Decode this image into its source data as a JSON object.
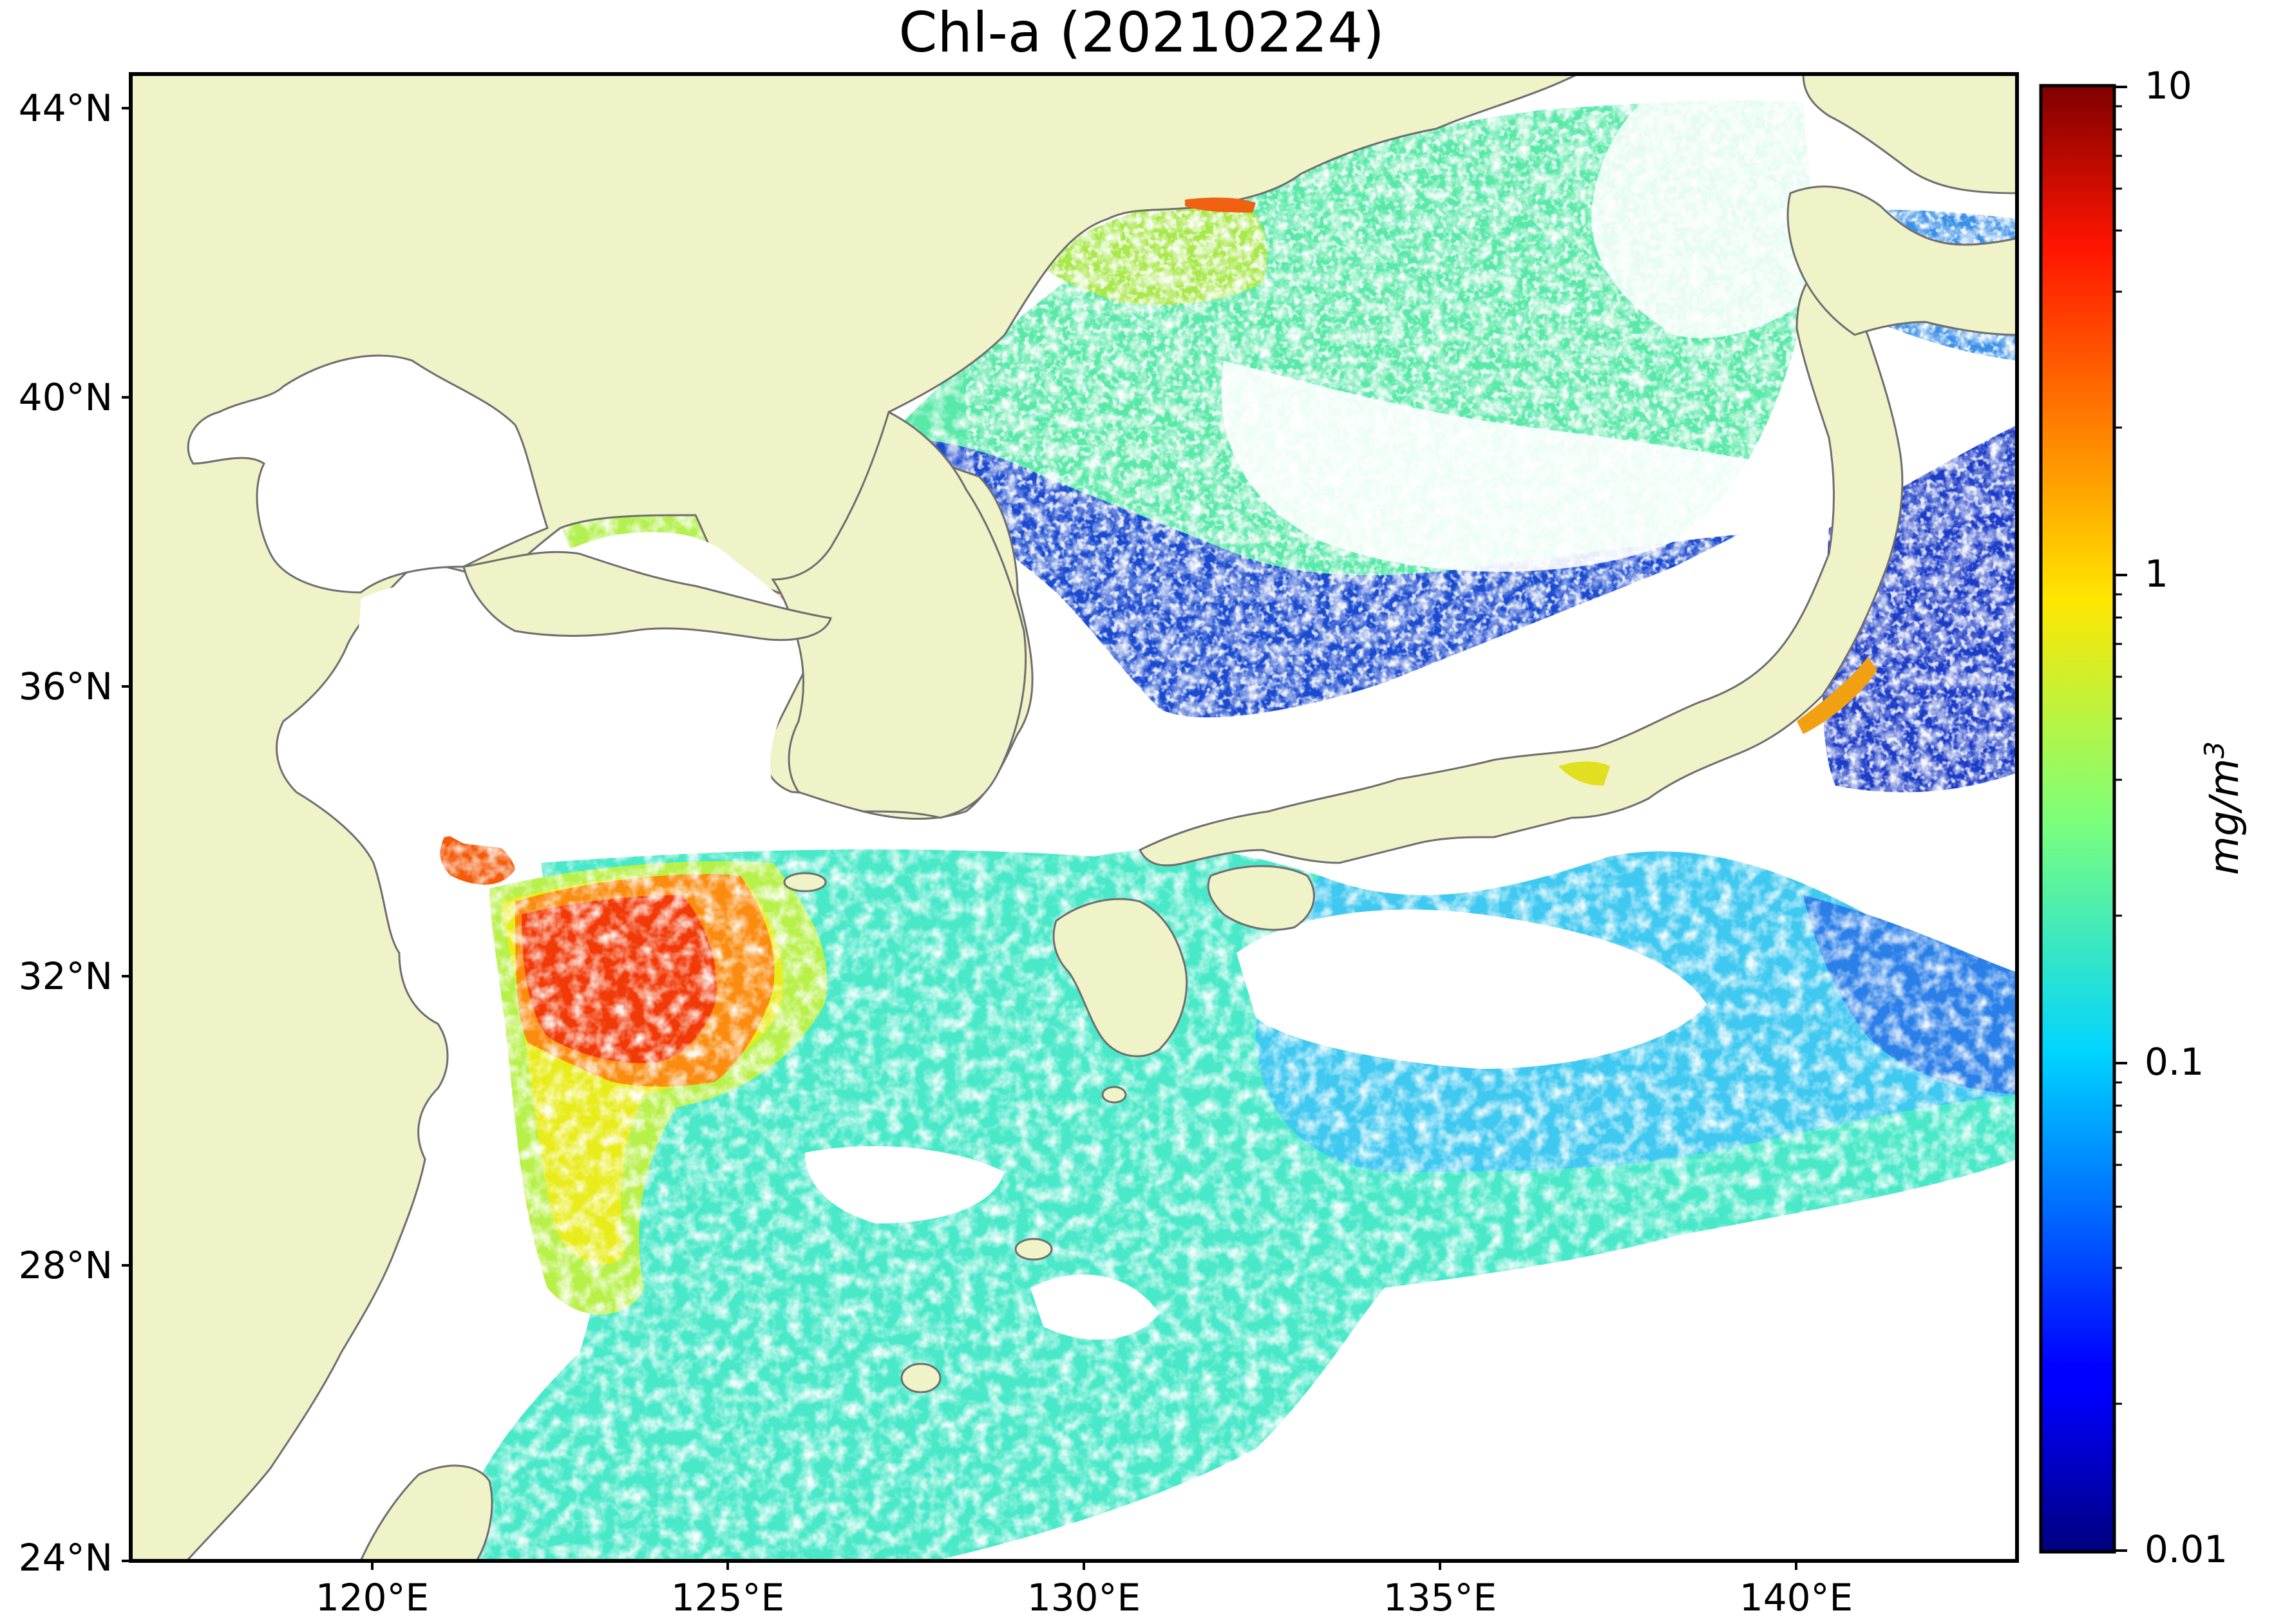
{
  "title": "Chl-a (20210224)",
  "map": {
    "lat_ticks": [
      "44°N",
      "40°N",
      "36°N",
      "32°N",
      "28°N",
      "24°N"
    ],
    "lon_ticks": [
      "120°E",
      "125°E",
      "130°E",
      "135°E",
      "140°E"
    ],
    "extent": {
      "lon": [
        116.3,
        142.8
      ],
      "lat": [
        24,
        44.6
      ]
    },
    "colors": {
      "land": "#f0f2c8",
      "coast": "#6e6e6e",
      "no_data": "#ffffff"
    }
  },
  "colorbar": {
    "scale": "log",
    "tick_labels": [
      "10",
      "1",
      "0.1",
      "0.01"
    ],
    "range": [
      0.01,
      10
    ],
    "unit_label": "mg/m",
    "unit_superscript": "3",
    "colormap": "jet"
  }
}
